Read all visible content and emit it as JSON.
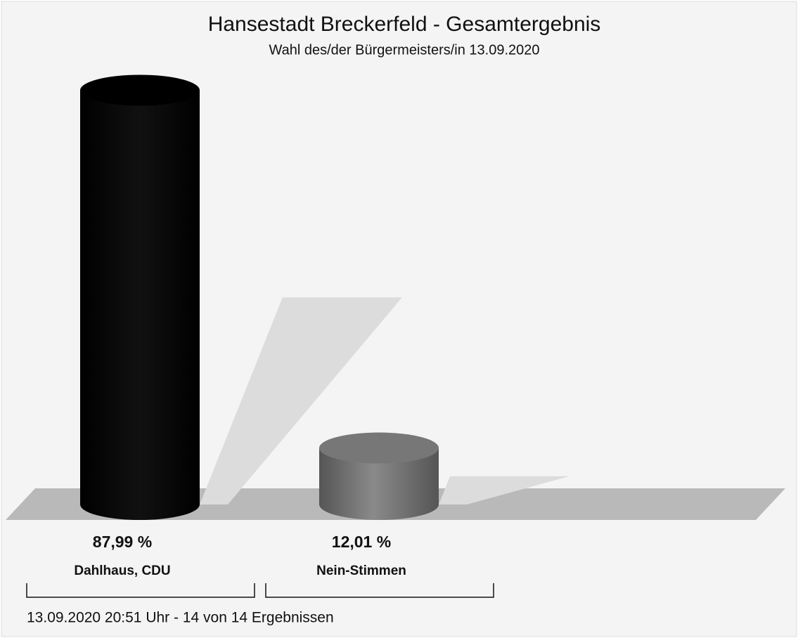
{
  "chart_data": {
    "type": "bar",
    "title": "Hansestadt Breckerfeld - Gesamtergebnis",
    "subtitle": "Wahl des/der Bürgermeisters/in 13.09.2020",
    "categories": [
      "Dahlhaus, CDU",
      "Nein-Stimmen"
    ],
    "values": [
      87.99,
      12.01
    ],
    "value_labels": [
      "87,99 %",
      "12,01 %"
    ],
    "colors": [
      "#000000",
      "#6e6e6e"
    ],
    "footer": "13.09.2020 20:51 Uhr - 14 von 14 Ergebnissen"
  }
}
